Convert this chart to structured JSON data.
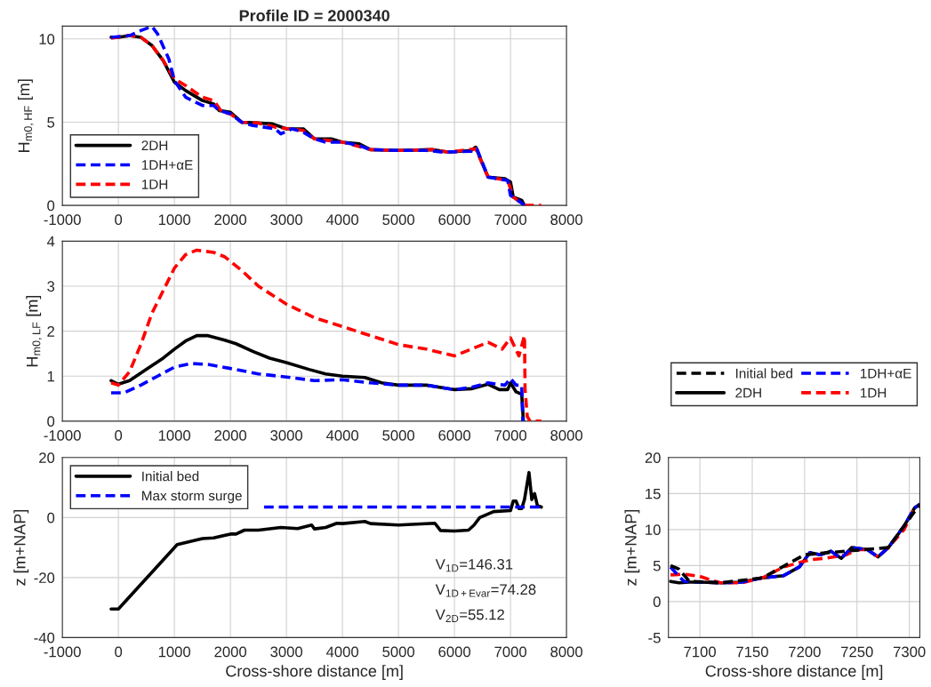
{
  "chart_data": [
    {
      "type": "line",
      "title": "Profile ID = 2000340",
      "ylabel": "H$_{m0,HF}$ [m]",
      "xlim": [
        -1000,
        8000
      ],
      "xticks": [
        -1000,
        0,
        1000,
        2000,
        3000,
        4000,
        5000,
        6000,
        7000,
        8000
      ],
      "ylim": [
        0,
        10.77
      ],
      "yticks": [
        0,
        5,
        10
      ],
      "grid": true,
      "legend": "bottom left",
      "series": [
        {
          "name": "2DH",
          "color": "#000000",
          "line_style": "solid",
          "x": [
            -130,
            0,
            200,
            400,
            600,
            800,
            1000,
            1200,
            1500,
            1700,
            1800,
            2000,
            2200,
            2500,
            2750,
            3000,
            3300,
            3500,
            3800,
            4000,
            4300,
            4500,
            5000,
            5600,
            5900,
            6300,
            6380,
            6500,
            6600,
            6900,
            7000,
            7050,
            7200,
            7250
          ],
          "values": [
            10.1,
            10.1,
            10.2,
            10.1,
            9.6,
            8.7,
            7.4,
            6.9,
            6.3,
            6.1,
            5.7,
            5.6,
            5.0,
            4.95,
            4.9,
            4.6,
            4.6,
            4.0,
            4.0,
            3.8,
            3.7,
            3.35,
            3.3,
            3.35,
            3.2,
            3.3,
            3.5,
            2.5,
            1.7,
            1.6,
            1.4,
            0.5,
            0.3,
            0
          ]
        },
        {
          "name": "1DH+αE",
          "color": "#0000ff",
          "line_style": "dashed",
          "x": [
            -130,
            200,
            400,
            600,
            700,
            900,
            1000,
            1200,
            1500,
            1700,
            1800,
            2000,
            2200,
            2400,
            2800,
            2900,
            3100,
            3300,
            3500,
            3700,
            3900,
            4000,
            4300,
            4500,
            5000,
            5500,
            5800,
            6300,
            6400,
            6600,
            6950,
            7000,
            7100,
            7250
          ],
          "values": [
            10.1,
            10.2,
            10.5,
            10.75,
            10.3,
            8.8,
            7.5,
            6.5,
            6.0,
            6.0,
            5.7,
            5.5,
            5.0,
            4.8,
            4.6,
            4.3,
            4.6,
            4.4,
            4.0,
            3.8,
            3.8,
            3.8,
            3.6,
            3.35,
            3.3,
            3.3,
            3.2,
            3.25,
            3.4,
            1.7,
            1.5,
            0.6,
            0.4,
            0
          ]
        },
        {
          "name": "1DH",
          "color": "#ff0000",
          "line_style": "dashed",
          "x": [
            -130,
            200,
            400,
            600,
            800,
            1000,
            1200,
            1500,
            1700,
            1850,
            2000,
            2200,
            2500,
            2800,
            3300,
            3500,
            4000,
            4500,
            5000,
            5600,
            5900,
            6380,
            6600,
            6950,
            7050,
            7250,
            7550
          ],
          "values": [
            10.05,
            10.2,
            10.1,
            9.6,
            8.7,
            7.6,
            7.2,
            6.5,
            6.3,
            5.6,
            5.5,
            5.0,
            4.95,
            4.7,
            4.5,
            4.0,
            3.8,
            3.35,
            3.3,
            3.35,
            3.2,
            3.4,
            1.7,
            1.5,
            0.5,
            0,
            0
          ]
        }
      ]
    },
    {
      "type": "line",
      "ylabel": "H$_{m0,LF}$ [m]",
      "xlim": [
        -1000,
        8000
      ],
      "xticks": [
        -1000,
        0,
        1000,
        2000,
        3000,
        4000,
        5000,
        6000,
        7000,
        8000
      ],
      "ylim": [
        0,
        4
      ],
      "yticks": [
        0,
        1,
        2,
        3,
        4
      ],
      "grid": true,
      "series": [
        {
          "color": "#ff0000",
          "line_style": "dashed",
          "x": [
            -130,
            0,
            200,
            400,
            600,
            800,
            1000,
            1200,
            1400,
            1700,
            1900,
            2200,
            2500,
            3000,
            3500,
            4000,
            4500,
            5000,
            5500,
            6000,
            6300,
            6600,
            6850,
            7000,
            7150,
            7250,
            7260,
            7300,
            7350,
            7550
          ],
          "values": [
            0.85,
            0.8,
            1.1,
            1.7,
            2.4,
            2.9,
            3.4,
            3.7,
            3.8,
            3.75,
            3.65,
            3.35,
            3.0,
            2.6,
            2.3,
            2.1,
            1.9,
            1.7,
            1.6,
            1.45,
            1.6,
            1.75,
            1.6,
            1.85,
            1.45,
            1.9,
            0.7,
            0.1,
            0,
            0
          ]
        },
        {
          "color": "#000000",
          "line_style": "solid",
          "x": [
            -130,
            0,
            200,
            500,
            800,
            1000,
            1200,
            1400,
            1600,
            1900,
            2100,
            2400,
            2700,
            3000,
            3400,
            3700,
            4000,
            4400,
            4700,
            5000,
            5500,
            6000,
            6300,
            6600,
            6800,
            6950,
            7000,
            7100,
            7200,
            7230
          ],
          "values": [
            0.9,
            0.82,
            0.9,
            1.15,
            1.4,
            1.6,
            1.78,
            1.9,
            1.9,
            1.8,
            1.72,
            1.55,
            1.4,
            1.3,
            1.15,
            1.05,
            1.0,
            0.97,
            0.85,
            0.8,
            0.8,
            0.7,
            0.72,
            0.82,
            0.7,
            0.7,
            0.85,
            0.65,
            0.6,
            0
          ]
        },
        {
          "color": "#0000ff",
          "line_style": "dashed",
          "x": [
            -130,
            100,
            400,
            700,
            1000,
            1300,
            1600,
            2000,
            2500,
            3000,
            3500,
            4000,
            4500,
            5000,
            5500,
            6000,
            6300,
            6600,
            6900,
            7000,
            7100,
            7200,
            7220
          ],
          "values": [
            0.63,
            0.63,
            0.8,
            1.0,
            1.2,
            1.28,
            1.26,
            1.17,
            1.05,
            0.98,
            0.9,
            0.92,
            0.85,
            0.8,
            0.8,
            0.7,
            0.75,
            0.85,
            0.8,
            0.95,
            0.8,
            0.8,
            0
          ]
        }
      ]
    },
    {
      "type": "line",
      "xlabel": "Cross-shore distance [m]",
      "ylabel": "z [m+NAP]",
      "xlim": [
        -1000,
        8000
      ],
      "xticks": [
        -1000,
        0,
        1000,
        2000,
        3000,
        4000,
        5000,
        6000,
        7000,
        8000
      ],
      "ylim": [
        -40,
        20
      ],
      "yticks": [
        -40,
        -20,
        0,
        20
      ],
      "grid": true,
      "legend": "top left",
      "annotations": [
        "V$_{1D}$=146.31",
        "V$_{1D+Evar}$=74.28",
        "V$_{2D}$=55.12"
      ],
      "series": [
        {
          "name": "Initial bed",
          "color": "#000000",
          "line_style": "solid",
          "x": [
            -130,
            0,
            1050,
            1500,
            1700,
            2000,
            2100,
            2250,
            2500,
            2900,
            3200,
            3450,
            3500,
            3700,
            3900,
            4000,
            4400,
            4500,
            5000,
            5650,
            5750,
            6000,
            6250,
            6350,
            6450,
            6700,
            7000,
            7050,
            7100,
            7150,
            7200,
            7250,
            7330,
            7380,
            7430,
            7480,
            7550
          ],
          "values": [
            -30.5,
            -30.5,
            -9,
            -7,
            -6.8,
            -5.5,
            -5.5,
            -4.2,
            -4.2,
            -3.3,
            -3.7,
            -2.5,
            -3.8,
            -3.3,
            -1.9,
            -2,
            -1.3,
            -2,
            -2.5,
            -1.9,
            -4.3,
            -4.5,
            -4.2,
            -2.5,
            0,
            2,
            2.3,
            5.5,
            5.5,
            3,
            3,
            6,
            15,
            6,
            8,
            4,
            3.5
          ]
        },
        {
          "name": "Max storm surge",
          "color": "#0000ff",
          "line_style": "dashed",
          "x": [
            2600,
            7550
          ],
          "values": [
            3.5,
            3.5
          ]
        }
      ]
    },
    {
      "type": "line",
      "xlabel": "Cross-shore distance [m]",
      "ylabel": "z [m+NAP]",
      "xlim": [
        7070,
        7310
      ],
      "xticks": [
        7100,
        7150,
        7200,
        7250,
        7300
      ],
      "ylim": [
        -5,
        20
      ],
      "yticks": [
        -5,
        0,
        5,
        10,
        15,
        20
      ],
      "grid": true,
      "legend": "top",
      "series": [
        {
          "name": "Initial bed",
          "color": "#000000",
          "line_style": "dashed",
          "x": [
            7072,
            7080,
            7090,
            7120,
            7160,
            7200,
            7240,
            7280,
            7310
          ],
          "values": [
            5.0,
            4.5,
            2.8,
            2.6,
            3.3,
            6.5,
            7.0,
            7.5,
            13.5
          ]
        },
        {
          "name": "2DH",
          "color": "#000000",
          "line_style": "solid",
          "x": [
            7072,
            7080,
            7090,
            7100,
            7120,
            7140,
            7160,
            7180,
            7195,
            7205,
            7215,
            7225,
            7235,
            7245,
            7260,
            7270,
            7280,
            7295,
            7305,
            7310
          ],
          "values": [
            2.8,
            2.6,
            2.7,
            2.7,
            2.6,
            2.7,
            3.3,
            3.6,
            4.8,
            6.8,
            6.5,
            7.0,
            6.0,
            7.5,
            7.2,
            6.2,
            7.5,
            10.5,
            13,
            13.5
          ]
        },
        {
          "name": "1DH+αE",
          "color": "#0000ff",
          "line_style": "dashed",
          "x": [
            7072,
            7080,
            7085,
            7100,
            7120,
            7140,
            7160,
            7180,
            7195,
            7205,
            7215,
            7225,
            7235,
            7245,
            7260,
            7270,
            7280,
            7295,
            7305,
            7310
          ],
          "values": [
            4.8,
            3.5,
            2.8,
            2.7,
            2.6,
            2.7,
            3.3,
            3.6,
            4.8,
            6.8,
            6.5,
            7.0,
            6.0,
            7.5,
            7.2,
            6.2,
            7.5,
            10.5,
            13,
            13.5
          ]
        },
        {
          "name": "1DH",
          "color": "#ff0000",
          "line_style": "dashed",
          "x": [
            7072,
            7085,
            7100,
            7110,
            7120,
            7140,
            7160,
            7180,
            7195,
            7205,
            7220,
            7240,
            7250,
            7260,
            7270,
            7280,
            7295,
            7305,
            7310
          ],
          "values": [
            3.7,
            3.8,
            3.5,
            3.0,
            2.6,
            2.6,
            3.3,
            4.8,
            5.4,
            5.8,
            6.0,
            6.5,
            7.2,
            7.2,
            6.2,
            7.5,
            10.0,
            13,
            13.5
          ]
        }
      ]
    }
  ]
}
